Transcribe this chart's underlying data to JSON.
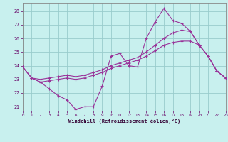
{
  "xlabel": "Windchill (Refroidissement éolien,°C)",
  "background_color": "#c8f0ee",
  "grid_color": "#99cccc",
  "line_color": "#993399",
  "xlim": [
    0,
    23
  ],
  "ylim": [
    20.7,
    28.6
  ],
  "yticks": [
    21,
    22,
    23,
    24,
    25,
    26,
    27,
    28
  ],
  "xticks": [
    0,
    1,
    2,
    3,
    4,
    5,
    6,
    7,
    8,
    9,
    10,
    11,
    12,
    13,
    14,
    15,
    16,
    17,
    18,
    19,
    20,
    21,
    22,
    23
  ],
  "series1": [
    23.9,
    23.1,
    22.8,
    22.3,
    21.8,
    21.5,
    20.8,
    21.0,
    21.0,
    22.5,
    24.7,
    24.9,
    24.0,
    23.9,
    26.0,
    27.2,
    28.2,
    27.3,
    27.1,
    26.5,
    25.5,
    24.7,
    23.6,
    23.1
  ],
  "series2": [
    23.9,
    23.1,
    23.0,
    23.1,
    23.2,
    23.3,
    23.2,
    23.3,
    23.5,
    23.7,
    24.0,
    24.2,
    24.4,
    24.6,
    25.0,
    25.5,
    26.0,
    26.4,
    26.6,
    26.5,
    25.5,
    24.7,
    23.6,
    23.1
  ],
  "series3": [
    23.9,
    23.1,
    22.8,
    22.9,
    23.0,
    23.1,
    23.0,
    23.1,
    23.3,
    23.5,
    23.8,
    24.0,
    24.2,
    24.4,
    24.7,
    25.1,
    25.5,
    25.7,
    25.8,
    25.8,
    25.5,
    24.7,
    23.6,
    23.1
  ]
}
